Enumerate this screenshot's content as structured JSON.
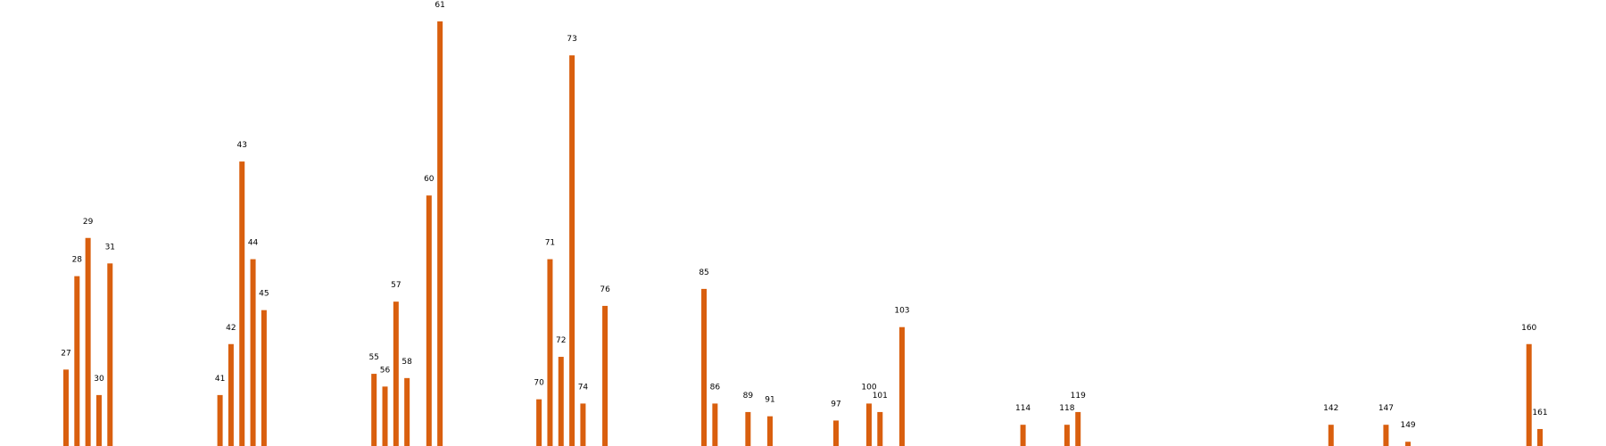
{
  "chart_data": {
    "type": "bar",
    "x": [
      27,
      28,
      29,
      30,
      31,
      41,
      42,
      43,
      44,
      45,
      55,
      56,
      57,
      58,
      60,
      61,
      70,
      71,
      72,
      73,
      74,
      76,
      85,
      86,
      89,
      91,
      97,
      100,
      101,
      103,
      114,
      118,
      119,
      142,
      147,
      149,
      160,
      161
    ],
    "labels": [
      "27",
      "28",
      "29",
      "30",
      "31",
      "41",
      "42",
      "43",
      "44",
      "45",
      "55",
      "56",
      "57",
      "58",
      "60",
      "61",
      "70",
      "71",
      "72",
      "73",
      "74",
      "76",
      "85",
      "86",
      "89",
      "91",
      "97",
      "100",
      "101",
      "103",
      "114",
      "118",
      "119",
      "142",
      "147",
      "149",
      "160",
      "161"
    ],
    "values": [
      18,
      40,
      49,
      12,
      43,
      12,
      24,
      67,
      44,
      32,
      17,
      14,
      34,
      16,
      59,
      100,
      11,
      44,
      21,
      92,
      10,
      33,
      37,
      10,
      8,
      7,
      6,
      10,
      8,
      28,
      5,
      5,
      8,
      5,
      5,
      1,
      24,
      4
    ],
    "xlim": [
      21,
      167
    ],
    "ylim": [
      0,
      100
    ],
    "bar_color": "#d95f0e",
    "grid": false,
    "axes_visible": false
  }
}
